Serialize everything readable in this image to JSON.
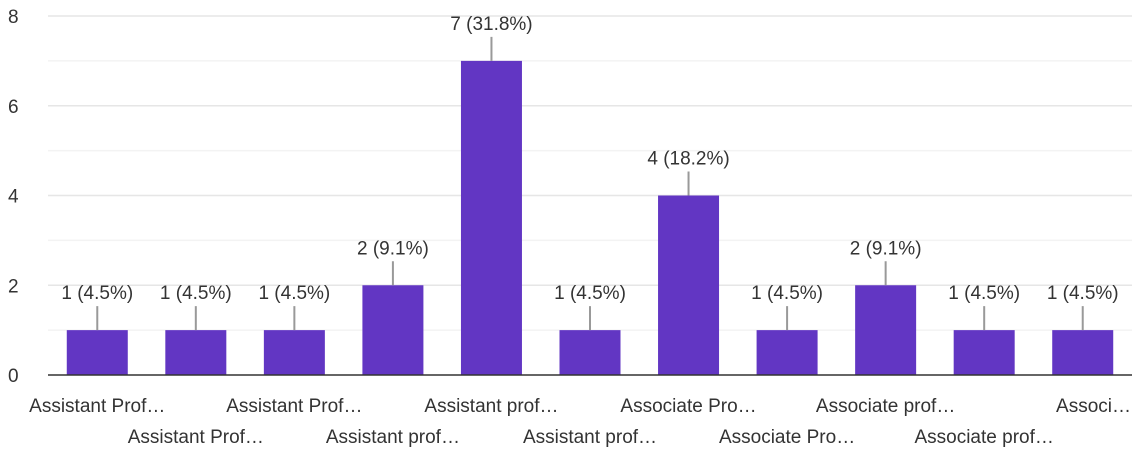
{
  "chart_data": {
    "type": "bar",
    "categories": [
      "Assistant Prof…",
      "Assistant Prof…",
      "Assistant Prof…",
      "Assistant prof…",
      "Assistant prof…",
      "Assistant prof…",
      "Associate Pro…",
      "Associate Pro…",
      "Associate prof…",
      "Associate prof…",
      "Associ…"
    ],
    "values": [
      1,
      1,
      1,
      2,
      7,
      1,
      4,
      1,
      2,
      1,
      1
    ],
    "data_labels": [
      "1 (4.5%)",
      "1 (4.5%)",
      "1 (4.5%)",
      "2 (9.1%)",
      "7 (31.8%)",
      "1 (4.5%)",
      "4 (18.2%)",
      "1 (4.5%)",
      "2 (9.1%)",
      "1 (4.5%)",
      "1 (4.5%)"
    ],
    "y_ticks": [
      "0",
      "2",
      "4",
      "6",
      "8"
    ],
    "ylim": [
      0,
      8
    ],
    "grid": true,
    "colors": {
      "bar": "#6236c3",
      "grid_major": "#e6e6e6",
      "grid_minor": "#f3f3f3",
      "axis": "#333333",
      "leader": "#999999",
      "text": "#333333"
    }
  }
}
